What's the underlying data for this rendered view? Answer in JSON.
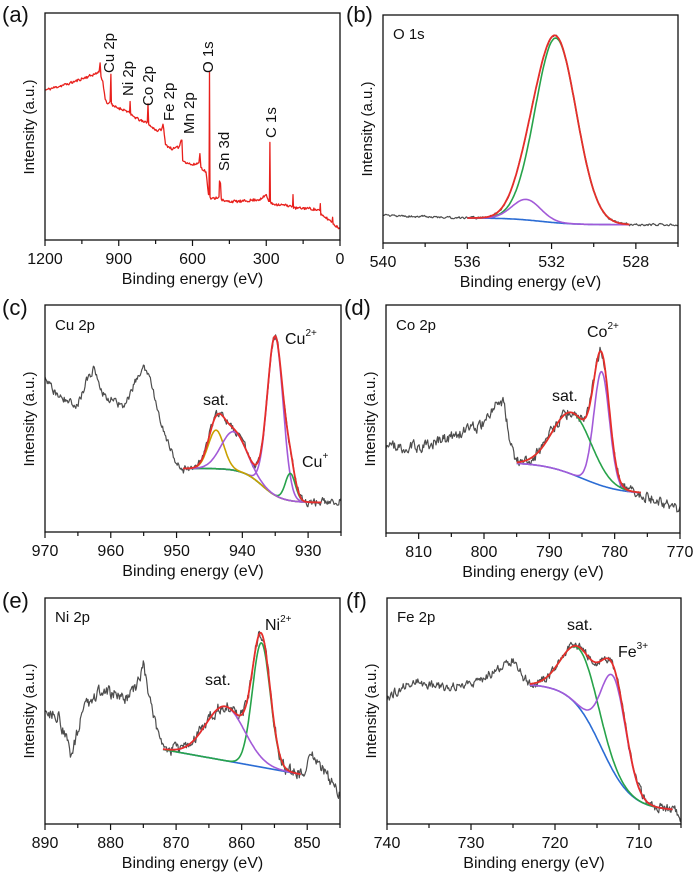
{
  "colors": {
    "experimental": "#4d4d4d",
    "envelope": "#e62e2b",
    "survey": "#e8201c",
    "green": "#27a34a",
    "purple": "#a25ad8",
    "blue": "#2b6cd4",
    "gold": "#c9a100"
  },
  "chart_data": [
    {
      "panel": "(a)",
      "type": "line",
      "title": "",
      "xlabel": "Binding energy (eV)",
      "ylabel": "Intensity (a.u.)",
      "xlim": [
        1200,
        0
      ],
      "ylim": [
        0,
        1
      ],
      "xticks": [
        1200,
        900,
        600,
        300,
        0
      ],
      "grid": false,
      "peak_labels": [
        "Cu 2p",
        "Ni 2p",
        "Co 2p",
        "Fe 2p",
        "Mn 2p",
        "O 1s",
        "Sn 3d",
        "C 1s"
      ],
      "series": [
        {
          "color": "#e8201c",
          "points": [
            [
              1200,
              0.66
            ],
            [
              1100,
              0.69
            ],
            [
              1000,
              0.73
            ],
            [
              980,
              0.74
            ],
            [
              976,
              0.78
            ],
            [
              972,
              0.72
            ],
            [
              965,
              0.7
            ],
            [
              955,
              0.62
            ],
            [
              945,
              0.6
            ],
            [
              935,
              0.61
            ],
            [
              932,
              0.73
            ],
            [
              930,
              0.6
            ],
            [
              925,
              0.59
            ],
            [
              870,
              0.57
            ],
            [
              856,
              0.56
            ],
            [
              854,
              0.61
            ],
            [
              852,
              0.56
            ],
            [
              850,
              0.55
            ],
            [
              800,
              0.52
            ],
            [
              784,
              0.52
            ],
            [
              781,
              0.6
            ],
            [
              778,
              0.51
            ],
            [
              770,
              0.5
            ],
            [
              740,
              0.48
            ],
            [
              725,
              0.49
            ],
            [
              720,
              0.51
            ],
            [
              712,
              0.44
            ],
            [
              710,
              0.42
            ],
            [
              680,
              0.4
            ],
            [
              655,
              0.41
            ],
            [
              646,
              0.44
            ],
            [
              643,
              0.44
            ],
            [
              640,
              0.35
            ],
            [
              600,
              0.33
            ],
            [
              574,
              0.34
            ],
            [
              570,
              0.38
            ],
            [
              566,
              0.32
            ],
            [
              545,
              0.3
            ],
            [
              535,
              0.2
            ],
            [
              533,
              0.2
            ],
            [
              531,
              0.74
            ],
            [
              529,
              0.19
            ],
            [
              525,
              0.18
            ],
            [
              492,
              0.19
            ],
            [
              490,
              0.26
            ],
            [
              486,
              0.25
            ],
            [
              483,
              0.18
            ],
            [
              470,
              0.17
            ],
            [
              400,
              0.17
            ],
            [
              320,
              0.18
            ],
            [
              300,
              0.2
            ],
            [
              290,
              0.17
            ],
            [
              287,
              0.17
            ],
            [
              285,
              0.43
            ],
            [
              283,
              0.17
            ],
            [
              280,
              0.16
            ],
            [
              200,
              0.15
            ],
            [
              193,
              0.15
            ],
            [
              191,
              0.2
            ],
            [
              189,
              0.14
            ],
            [
              130,
              0.14
            ],
            [
              82,
              0.13
            ],
            [
              80,
              0.16
            ],
            [
              78,
              0.11
            ],
            [
              60,
              0.1
            ],
            [
              32,
              0.08
            ],
            [
              30,
              0.1
            ],
            [
              28,
              0.07
            ],
            [
              0,
              0.05
            ]
          ]
        }
      ]
    },
    {
      "panel": "(b)",
      "type": "line",
      "element": "O 1s",
      "xlabel": "Binding energy (eV)",
      "ylabel": "Intensity (a.u.)",
      "xlim": [
        540,
        526
      ],
      "ylim": [
        0,
        1
      ],
      "xticks": [
        540,
        536,
        532,
        528
      ],
      "grid": false,
      "fit_range": [
        536,
        528.3
      ],
      "baseline": {
        "type": "shirley",
        "high": 0.11,
        "low": 0.08,
        "center": 532.5,
        "width": 0.8
      },
      "components": [
        {
          "center": 531.8,
          "height": 0.81,
          "fwhm": 2.3,
          "color": "#27a34a"
        },
        {
          "center": 533.2,
          "height": 0.09,
          "fwhm": 1.6,
          "color": "#a25ad8"
        }
      ],
      "experimental_outside_fit": [
        [
          540,
          0.12
        ],
        [
          536,
          0.11
        ],
        [
          528.3,
          0.08
        ],
        [
          526,
          0.08
        ]
      ],
      "noise": 0.006,
      "annotations": []
    },
    {
      "panel": "(c)",
      "type": "line",
      "element": "Cu 2p",
      "xlabel": "Binding energy (eV)",
      "ylabel": "Intensity (a.u.)",
      "xlim": [
        970,
        925
      ],
      "ylim": [
        0,
        1
      ],
      "xticks": [
        970,
        960,
        950,
        940,
        930
      ],
      "grid": false,
      "fit_range": [
        949,
        928
      ],
      "baseline": {
        "type": "shirley",
        "high": 0.28,
        "low": 0.13,
        "center": 937,
        "width": 1.5
      },
      "components": [
        {
          "center": 935,
          "height": 0.7,
          "fwhm": 2.8,
          "color": "#a25ad8"
        },
        {
          "center": 932.7,
          "height": 0.12,
          "fwhm": 1.8,
          "color": "#27a34a"
        },
        {
          "center": 944,
          "height": 0.17,
          "fwhm": 2.8,
          "color": "#c9a100"
        },
        {
          "center": 941.3,
          "height": 0.17,
          "fwhm": 4.5,
          "color": "#a25ad8"
        }
      ],
      "experimental_outside_fit": [
        [
          970,
          0.67
        ],
        [
          968,
          0.6
        ],
        [
          965,
          0.56
        ],
        [
          963.5,
          0.68
        ],
        [
          962.5,
          0.72
        ],
        [
          961,
          0.6
        ],
        [
          958,
          0.55
        ],
        [
          956,
          0.68
        ],
        [
          955,
          0.73
        ],
        [
          954,
          0.66
        ],
        [
          952,
          0.45
        ],
        [
          950,
          0.3
        ],
        [
          949,
          0.29
        ],
        [
          928,
          0.13
        ],
        [
          925,
          0.14
        ]
      ],
      "noise": 0.022,
      "annotations": [
        {
          "text": "sat.",
          "sup": ""
        },
        {
          "text": "Cu",
          "sup": "2+"
        },
        {
          "text": "Cu",
          "sup": "+"
        }
      ]
    },
    {
      "panel": "(d)",
      "type": "line",
      "element": "Co 2p",
      "xlabel": "Binding energy (eV)",
      "ylabel": "Intensity (a.u.)",
      "xlim": [
        815,
        770
      ],
      "ylim": [
        0,
        1
      ],
      "xticks": [
        810,
        800,
        790,
        780,
        770
      ],
      "grid": false,
      "fit_range": [
        795,
        776
      ],
      "baseline": {
        "type": "shirley",
        "high": 0.31,
        "low": 0.17,
        "center": 785,
        "width": 3
      },
      "components": [
        {
          "center": 782,
          "height": 0.5,
          "fwhm": 2.8,
          "color": "#a25ad8"
        },
        {
          "center": 786.5,
          "height": 0.27,
          "fwhm": 7,
          "color": "#27a34a"
        }
      ],
      "experimental_outside_fit": [
        [
          815,
          0.37
        ],
        [
          810,
          0.38
        ],
        [
          805,
          0.42
        ],
        [
          800,
          0.48
        ],
        [
          798,
          0.57
        ],
        [
          797,
          0.58
        ],
        [
          796,
          0.4
        ],
        [
          795,
          0.31
        ],
        [
          776,
          0.17
        ],
        [
          773,
          0.14
        ],
        [
          770,
          0.1
        ]
      ],
      "noise": 0.032,
      "annotations": [
        {
          "text": "sat.",
          "sup": ""
        },
        {
          "text": "Co",
          "sup": "2+"
        }
      ]
    },
    {
      "panel": "(e)",
      "type": "line",
      "element": "Ni 2p",
      "xlabel": "Binding energy (eV)",
      "ylabel": "Intensity (a.u.)",
      "xlim": [
        890,
        845
      ],
      "ylim": [
        0,
        1
      ],
      "xticks": [
        890,
        880,
        870,
        860,
        850
      ],
      "grid": false,
      "fit_range": [
        872,
        851
      ],
      "baseline": {
        "type": "linear",
        "high": 0.33,
        "low": 0.22
      },
      "components": [
        {
          "center": 857,
          "height": 0.55,
          "fwhm": 3.2,
          "color": "#27a34a"
        },
        {
          "center": 862.5,
          "height": 0.24,
          "fwhm": 7,
          "color": "#a25ad8"
        }
      ],
      "experimental_outside_fit": [
        [
          890,
          0.5
        ],
        [
          888,
          0.48
        ],
        [
          886,
          0.3
        ],
        [
          884,
          0.52
        ],
        [
          881,
          0.6
        ],
        [
          878,
          0.55
        ],
        [
          876,
          0.6
        ],
        [
          875,
          0.7
        ],
        [
          874,
          0.55
        ],
        [
          873,
          0.42
        ],
        [
          872,
          0.33
        ],
        [
          851,
          0.22
        ],
        [
          849,
          0.3
        ],
        [
          847,
          0.22
        ],
        [
          845,
          0.12
        ]
      ],
      "noise": 0.035,
      "annotations": [
        {
          "text": "sat.",
          "sup": ""
        },
        {
          "text": "Ni",
          "sup": "2+"
        }
      ]
    },
    {
      "panel": "(f)",
      "type": "line",
      "element": "Fe 2p",
      "xlabel": "Binding energy (eV)",
      "ylabel": "Intensity (a.u.)",
      "xlim": [
        740,
        705
      ],
      "ylim": [
        0,
        1
      ],
      "xticks": [
        740,
        730,
        720,
        710
      ],
      "grid": false,
      "fit_range": [
        723,
        706
      ],
      "baseline": {
        "type": "shirley",
        "high": 0.62,
        "low": 0.06,
        "center": 714.5,
        "width": 1.8
      },
      "components": [
        {
          "center": 717,
          "height": 0.26,
          "fwhm": 5,
          "color": "#27a34a"
        },
        {
          "center": 713,
          "height": 0.42,
          "fwhm": 3.5,
          "color": "#a25ad8"
        }
      ],
      "experimental_outside_fit": [
        [
          740,
          0.56
        ],
        [
          737,
          0.63
        ],
        [
          733,
          0.6
        ],
        [
          730,
          0.62
        ],
        [
          727,
          0.68
        ],
        [
          725,
          0.73
        ],
        [
          724,
          0.66
        ],
        [
          723,
          0.62
        ],
        [
          706,
          0.07
        ],
        [
          705,
          0.03
        ]
      ],
      "noise": 0.025,
      "annotations": [
        {
          "text": "sat.",
          "sup": ""
        },
        {
          "text": "Fe",
          "sup": "3+"
        }
      ]
    }
  ]
}
